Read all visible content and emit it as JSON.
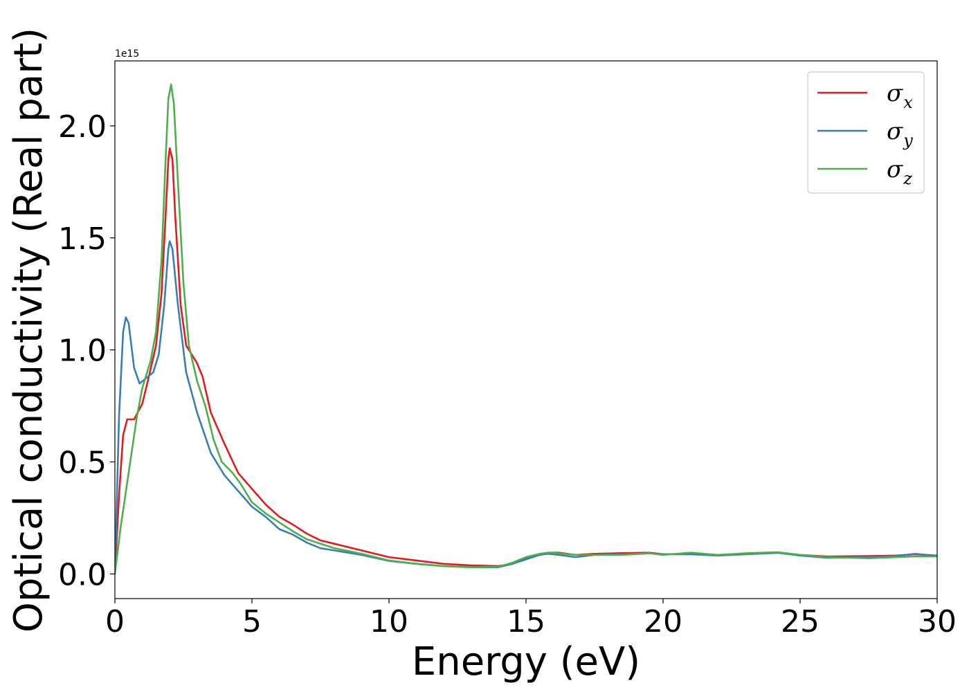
{
  "chart_data": {
    "type": "line",
    "xlabel": "Energy (eV)",
    "ylabel": "Optical conductivity (Real part)",
    "y_offset_label": "1e15",
    "xlim": [
      0,
      30
    ],
    "ylim": [
      -0.11,
      2.29
    ],
    "x_ticks": [
      0,
      5,
      10,
      15,
      20,
      25,
      30
    ],
    "x_tick_labels": [
      "0",
      "5",
      "10",
      "15",
      "20",
      "25",
      "30"
    ],
    "y_ticks": [
      0.0,
      0.5,
      1.0,
      1.5,
      2.0
    ],
    "y_tick_labels": [
      "0.0",
      "0.5",
      "1.0",
      "1.5",
      "2.0"
    ],
    "grid": false,
    "legend_position": "top-right",
    "series": [
      {
        "name": "σx",
        "symbol": "σ",
        "subscript": "x",
        "color": "#e41a1c",
        "points": [
          [
            0,
            0
          ],
          [
            0.15,
            0.35
          ],
          [
            0.3,
            0.62
          ],
          [
            0.45,
            0.69
          ],
          [
            0.7,
            0.69
          ],
          [
            1.0,
            0.76
          ],
          [
            1.2,
            0.86
          ],
          [
            1.5,
            1.02
          ],
          [
            1.7,
            1.25
          ],
          [
            1.85,
            1.6
          ],
          [
            1.95,
            1.85
          ],
          [
            2.0,
            1.9
          ],
          [
            2.1,
            1.85
          ],
          [
            2.2,
            1.6
          ],
          [
            2.4,
            1.2
          ],
          [
            2.6,
            1.02
          ],
          [
            2.8,
            0.98
          ],
          [
            3.0,
            0.94
          ],
          [
            3.2,
            0.88
          ],
          [
            3.5,
            0.72
          ],
          [
            4.0,
            0.58
          ],
          [
            4.5,
            0.45
          ],
          [
            5.0,
            0.38
          ],
          [
            5.5,
            0.31
          ],
          [
            6.0,
            0.255
          ],
          [
            6.5,
            0.22
          ],
          [
            7.0,
            0.18
          ],
          [
            7.5,
            0.15
          ],
          [
            8.0,
            0.135
          ],
          [
            8.5,
            0.12
          ],
          [
            9.0,
            0.105
          ],
          [
            9.5,
            0.09
          ],
          [
            10.0,
            0.075
          ],
          [
            11.0,
            0.06
          ],
          [
            12.0,
            0.045
          ],
          [
            13.0,
            0.038
          ],
          [
            14.0,
            0.035
          ],
          [
            14.5,
            0.045
          ],
          [
            15.0,
            0.07
          ],
          [
            15.5,
            0.085
          ],
          [
            15.8,
            0.095
          ],
          [
            16.2,
            0.095
          ],
          [
            16.8,
            0.085
          ],
          [
            17.5,
            0.09
          ],
          [
            18.5,
            0.093
          ],
          [
            19.5,
            0.095
          ],
          [
            20.0,
            0.088
          ],
          [
            21.0,
            0.09
          ],
          [
            22.0,
            0.085
          ],
          [
            23.0,
            0.09
          ],
          [
            24.2,
            0.095
          ],
          [
            25.0,
            0.085
          ],
          [
            26.0,
            0.078
          ],
          [
            27.5,
            0.08
          ],
          [
            28.5,
            0.082
          ],
          [
            29.2,
            0.088
          ],
          [
            30.0,
            0.082
          ]
        ]
      },
      {
        "name": "σy",
        "symbol": "σ",
        "subscript": "y",
        "color": "#377eb8",
        "points": [
          [
            0,
            0
          ],
          [
            0.15,
            0.7
          ],
          [
            0.3,
            1.08
          ],
          [
            0.4,
            1.145
          ],
          [
            0.5,
            1.12
          ],
          [
            0.7,
            0.92
          ],
          [
            0.9,
            0.85
          ],
          [
            1.1,
            0.87
          ],
          [
            1.4,
            0.9
          ],
          [
            1.6,
            0.98
          ],
          [
            1.8,
            1.2
          ],
          [
            1.95,
            1.45
          ],
          [
            2.0,
            1.485
          ],
          [
            2.1,
            1.45
          ],
          [
            2.3,
            1.2
          ],
          [
            2.6,
            0.9
          ],
          [
            3.0,
            0.72
          ],
          [
            3.5,
            0.54
          ],
          [
            4.0,
            0.44
          ],
          [
            4.5,
            0.37
          ],
          [
            5.0,
            0.3
          ],
          [
            5.5,
            0.255
          ],
          [
            6.0,
            0.2
          ],
          [
            6.5,
            0.175
          ],
          [
            7.0,
            0.14
          ],
          [
            7.5,
            0.115
          ],
          [
            8.0,
            0.105
          ],
          [
            9.0,
            0.085
          ],
          [
            10.0,
            0.058
          ],
          [
            11.0,
            0.045
          ],
          [
            12.0,
            0.035
          ],
          [
            13.0,
            0.03
          ],
          [
            14.0,
            0.03
          ],
          [
            14.5,
            0.045
          ],
          [
            15.0,
            0.065
          ],
          [
            15.5,
            0.085
          ],
          [
            15.8,
            0.09
          ],
          [
            16.2,
            0.085
          ],
          [
            16.8,
            0.075
          ],
          [
            17.5,
            0.085
          ],
          [
            18.5,
            0.088
          ],
          [
            19.5,
            0.092
          ],
          [
            20.0,
            0.088
          ],
          [
            21.0,
            0.088
          ],
          [
            22.0,
            0.082
          ],
          [
            23.0,
            0.088
          ],
          [
            24.2,
            0.094
          ],
          [
            25.0,
            0.082
          ],
          [
            26.0,
            0.072
          ],
          [
            27.5,
            0.076
          ],
          [
            28.5,
            0.08
          ],
          [
            29.2,
            0.09
          ],
          [
            30.0,
            0.08
          ]
        ]
      },
      {
        "name": "σz",
        "symbol": "σ",
        "subscript": "z",
        "color": "#4daf4a",
        "points": [
          [
            0,
            0
          ],
          [
            0.2,
            0.2
          ],
          [
            0.5,
            0.45
          ],
          [
            0.8,
            0.7
          ],
          [
            1.0,
            0.83
          ],
          [
            1.3,
            0.95
          ],
          [
            1.5,
            1.08
          ],
          [
            1.7,
            1.4
          ],
          [
            1.85,
            1.85
          ],
          [
            1.95,
            2.12
          ],
          [
            2.05,
            2.185
          ],
          [
            2.15,
            2.1
          ],
          [
            2.3,
            1.75
          ],
          [
            2.5,
            1.3
          ],
          [
            2.7,
            1.02
          ],
          [
            3.0,
            0.86
          ],
          [
            3.3,
            0.75
          ],
          [
            3.6,
            0.6
          ],
          [
            3.9,
            0.5
          ],
          [
            4.3,
            0.45
          ],
          [
            4.6,
            0.4
          ],
          [
            5.0,
            0.32
          ],
          [
            5.5,
            0.27
          ],
          [
            6.0,
            0.23
          ],
          [
            6.5,
            0.19
          ],
          [
            7.0,
            0.155
          ],
          [
            7.5,
            0.135
          ],
          [
            8.0,
            0.115
          ],
          [
            9.0,
            0.09
          ],
          [
            10.0,
            0.06
          ],
          [
            11.0,
            0.045
          ],
          [
            12.0,
            0.035
          ],
          [
            13.0,
            0.03
          ],
          [
            14.0,
            0.032
          ],
          [
            14.5,
            0.05
          ],
          [
            15.0,
            0.075
          ],
          [
            15.5,
            0.09
          ],
          [
            15.8,
            0.095
          ],
          [
            16.2,
            0.092
          ],
          [
            16.8,
            0.085
          ],
          [
            17.5,
            0.085
          ],
          [
            18.5,
            0.085
          ],
          [
            19.5,
            0.092
          ],
          [
            20.0,
            0.085
          ],
          [
            21.0,
            0.095
          ],
          [
            22.0,
            0.085
          ],
          [
            23.0,
            0.092
          ],
          [
            24.2,
            0.097
          ],
          [
            25.0,
            0.085
          ],
          [
            26.0,
            0.075
          ],
          [
            27.5,
            0.07
          ],
          [
            28.5,
            0.075
          ],
          [
            29.2,
            0.078
          ],
          [
            30.0,
            0.078
          ]
        ]
      }
    ]
  }
}
